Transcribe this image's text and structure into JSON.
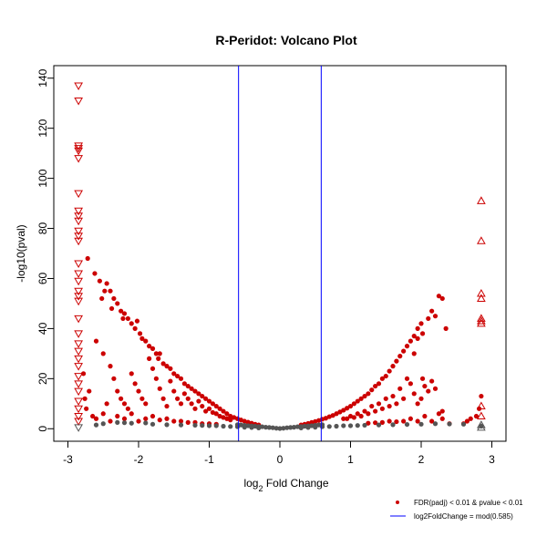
{
  "chart_data": {
    "type": "scatter",
    "title": "R-Peridot: Volcano Plot",
    "xlabel_prefix": "log",
    "xlabel_sub": "2",
    "xlabel_suffix": " Fold Change",
    "ylabel": "-log10(pval)",
    "xlim": [
      -3,
      3
    ],
    "ylim": [
      -5,
      145
    ],
    "x_ticks": [
      -3,
      -2,
      -1,
      0,
      1,
      2,
      3
    ],
    "y_ticks": [
      0,
      20,
      40,
      60,
      80,
      100,
      120,
      140
    ],
    "vlines": [
      -0.585,
      0.585
    ],
    "colors": {
      "significant": "#cc0000",
      "nonsignificant": "#555555",
      "threshold_line": "#0000ff"
    },
    "legend": {
      "position": "bottom-right",
      "items": [
        {
          "label": "FDR(padj) < 0.01 & pvalue < 0.01",
          "marker": "point",
          "color": "#cc0000"
        },
        {
          "label": "log2FoldChange = mod(0.585)",
          "marker": "line",
          "color": "#0000ff"
        }
      ]
    },
    "series": [
      {
        "name": "FDR(padj) < 0.01 & pvalue < 0.01",
        "color": "#cc0000",
        "marker": "circle",
        "points": [
          [
            -2.72,
            68
          ],
          [
            -2.62,
            62
          ],
          [
            -2.55,
            59
          ],
          [
            -2.52,
            52
          ],
          [
            -2.48,
            55
          ],
          [
            -2.45,
            58
          ],
          [
            -2.4,
            55
          ],
          [
            -2.38,
            48
          ],
          [
            -2.35,
            52
          ],
          [
            -2.3,
            50
          ],
          [
            -2.25,
            47
          ],
          [
            -2.22,
            44
          ],
          [
            -2.2,
            46
          ],
          [
            -2.15,
            44
          ],
          [
            -2.1,
            42
          ],
          [
            -2.05,
            40
          ],
          [
            -2.02,
            43
          ],
          [
            -1.98,
            38
          ],
          [
            -1.95,
            36
          ],
          [
            -1.9,
            35
          ],
          [
            -1.85,
            33
          ],
          [
            -1.8,
            32
          ],
          [
            -1.75,
            30
          ],
          [
            -1.72,
            28
          ],
          [
            -1.7,
            30
          ],
          [
            -1.65,
            26
          ],
          [
            -1.6,
            25
          ],
          [
            -1.55,
            24
          ],
          [
            -1.5,
            22
          ],
          [
            -1.45,
            21
          ],
          [
            -1.4,
            20
          ],
          [
            -1.35,
            18
          ],
          [
            -1.3,
            17
          ],
          [
            -1.25,
            16
          ],
          [
            -1.2,
            15
          ],
          [
            -1.15,
            14
          ],
          [
            -1.1,
            13
          ],
          [
            -1.05,
            12
          ],
          [
            -1.0,
            11
          ],
          [
            -0.95,
            10
          ],
          [
            -0.9,
            9
          ],
          [
            -0.85,
            8
          ],
          [
            -0.8,
            7
          ],
          [
            -0.75,
            6
          ],
          [
            -0.7,
            5
          ],
          [
            -0.65,
            4.5
          ],
          [
            -0.6,
            4
          ],
          [
            -0.55,
            3.5
          ],
          [
            -0.5,
            3
          ],
          [
            -0.45,
            2.6
          ],
          [
            -0.4,
            2.2
          ],
          [
            -0.35,
            1.8
          ],
          [
            -0.3,
            1.5
          ],
          [
            -2.6,
            35
          ],
          [
            -2.5,
            30
          ],
          [
            -2.4,
            25
          ],
          [
            -2.35,
            20
          ],
          [
            -2.3,
            15
          ],
          [
            -2.25,
            12
          ],
          [
            -2.2,
            10
          ],
          [
            -2.15,
            8
          ],
          [
            -2.1,
            22
          ],
          [
            -2.05,
            18
          ],
          [
            -2.0,
            15
          ],
          [
            -1.95,
            12
          ],
          [
            -1.9,
            10
          ],
          [
            -1.85,
            28
          ],
          [
            -1.8,
            24
          ],
          [
            -1.75,
            20
          ],
          [
            -1.7,
            16
          ],
          [
            -1.65,
            12
          ],
          [
            -1.6,
            9
          ],
          [
            -1.55,
            19
          ],
          [
            -1.5,
            15
          ],
          [
            -1.45,
            12
          ],
          [
            -1.4,
            10
          ],
          [
            -1.35,
            14
          ],
          [
            -1.3,
            12
          ],
          [
            -1.25,
            10
          ],
          [
            -1.2,
            8
          ],
          [
            -1.15,
            11
          ],
          [
            -1.1,
            9
          ],
          [
            -1.05,
            7
          ],
          [
            -1.0,
            8
          ],
          [
            -0.95,
            6.5
          ],
          [
            -0.9,
            6
          ],
          [
            -0.85,
            5
          ],
          [
            -0.8,
            4.5
          ],
          [
            -0.75,
            4
          ],
          [
            -0.7,
            3.5
          ],
          [
            -2.78,
            22
          ],
          [
            -2.76,
            12
          ],
          [
            -2.74,
            8
          ],
          [
            -2.7,
            15
          ],
          [
            -2.65,
            5
          ],
          [
            -2.6,
            4
          ],
          [
            -2.5,
            6
          ],
          [
            -2.45,
            10
          ],
          [
            -2.4,
            3
          ],
          [
            -2.3,
            5
          ],
          [
            -2.2,
            4
          ],
          [
            -2.1,
            6
          ],
          [
            -2.0,
            3
          ],
          [
            -1.9,
            4
          ],
          [
            -1.8,
            5
          ],
          [
            -1.7,
            3.5
          ],
          [
            -1.6,
            4
          ],
          [
            -1.5,
            3
          ],
          [
            -1.4,
            3
          ],
          [
            -1.3,
            2.5
          ],
          [
            -1.2,
            2.5
          ],
          [
            -1.1,
            2
          ],
          [
            -1.0,
            2
          ],
          [
            -0.9,
            1.8
          ],
          [
            0.3,
            1.5
          ],
          [
            0.35,
            1.8
          ],
          [
            0.4,
            2.1
          ],
          [
            0.45,
            2.5
          ],
          [
            0.5,
            2.9
          ],
          [
            0.55,
            3.3
          ],
          [
            0.6,
            3.8
          ],
          [
            0.65,
            4.2
          ],
          [
            0.7,
            4.8
          ],
          [
            0.75,
            5.3
          ],
          [
            0.8,
            6
          ],
          [
            0.85,
            6.7
          ],
          [
            0.9,
            7.4
          ],
          [
            0.95,
            8.2
          ],
          [
            1.0,
            9
          ],
          [
            1.05,
            10
          ],
          [
            1.1,
            11
          ],
          [
            1.15,
            12
          ],
          [
            1.2,
            13
          ],
          [
            1.25,
            14
          ],
          [
            1.3,
            15.5
          ],
          [
            1.35,
            17
          ],
          [
            1.4,
            18
          ],
          [
            1.45,
            20
          ],
          [
            1.5,
            21
          ],
          [
            1.55,
            23
          ],
          [
            1.6,
            25
          ],
          [
            1.65,
            27
          ],
          [
            1.7,
            29
          ],
          [
            1.75,
            31
          ],
          [
            1.8,
            33
          ],
          [
            1.85,
            35
          ],
          [
            1.9,
            37
          ],
          [
            1.95,
            40
          ],
          [
            2.0,
            42
          ],
          [
            1.9,
            30
          ],
          [
            1.95,
            36
          ],
          [
            2.02,
            38
          ],
          [
            2.1,
            44
          ],
          [
            2.15,
            47
          ],
          [
            2.2,
            45
          ],
          [
            2.25,
            53
          ],
          [
            2.3,
            52
          ],
          [
            2.35,
            40
          ],
          [
            2.02,
            20
          ],
          [
            2.05,
            17
          ],
          [
            2.1,
            15
          ],
          [
            2.15,
            19
          ],
          [
            2.2,
            16
          ],
          [
            2.0,
            12
          ],
          [
            1.95,
            10
          ],
          [
            1.9,
            14
          ],
          [
            1.85,
            18
          ],
          [
            1.8,
            20
          ],
          [
            1.75,
            12
          ],
          [
            1.7,
            16
          ],
          [
            1.65,
            10
          ],
          [
            1.6,
            13
          ],
          [
            1.55,
            9
          ],
          [
            1.5,
            12
          ],
          [
            1.45,
            8
          ],
          [
            1.4,
            10
          ],
          [
            1.35,
            7
          ],
          [
            1.3,
            9
          ],
          [
            1.25,
            6
          ],
          [
            1.2,
            7
          ],
          [
            1.15,
            5
          ],
          [
            1.1,
            6
          ],
          [
            1.05,
            4.5
          ],
          [
            1.0,
            5
          ],
          [
            0.95,
            4
          ],
          [
            0.9,
            4
          ],
          [
            2.25,
            6
          ],
          [
            2.3,
            4
          ],
          [
            2.15,
            3
          ],
          [
            2.05,
            5
          ],
          [
            1.95,
            3
          ],
          [
            1.85,
            4
          ],
          [
            1.75,
            3
          ],
          [
            1.65,
            2.8
          ],
          [
            1.55,
            3
          ],
          [
            1.45,
            2.5
          ],
          [
            1.35,
            2.4
          ],
          [
            1.25,
            2.2
          ],
          [
            2.65,
            3
          ],
          [
            2.7,
            4
          ],
          [
            2.6,
            2
          ],
          [
            2.85,
            13
          ],
          [
            2.82,
            8
          ],
          [
            2.78,
            5
          ],
          [
            2.3,
            7
          ],
          [
            2.4,
            2
          ]
        ]
      },
      {
        "name": "",
        "color": "#555555",
        "marker": "circle",
        "points": [
          [
            -0.6,
            1.6
          ],
          [
            -0.55,
            1.5
          ],
          [
            -0.5,
            1.4
          ],
          [
            -0.45,
            1.2
          ],
          [
            -0.4,
            1.1
          ],
          [
            -0.35,
            1.0
          ],
          [
            -0.3,
            0.9
          ],
          [
            -0.25,
            0.8
          ],
          [
            -0.2,
            0.6
          ],
          [
            -0.15,
            0.5
          ],
          [
            -0.1,
            0.4
          ],
          [
            -0.05,
            0.2
          ],
          [
            0.0,
            0.1
          ],
          [
            0.05,
            0.2
          ],
          [
            0.1,
            0.4
          ],
          [
            0.15,
            0.5
          ],
          [
            0.2,
            0.6
          ],
          [
            0.25,
            0.8
          ],
          [
            0.3,
            0.9
          ],
          [
            0.35,
            1.0
          ],
          [
            0.4,
            1.1
          ],
          [
            0.45,
            1.2
          ],
          [
            0.5,
            1.4
          ],
          [
            0.55,
            1.5
          ],
          [
            0.6,
            1.6
          ],
          [
            -0.9,
            1.2
          ],
          [
            -0.8,
            1.0
          ],
          [
            -0.7,
            0.9
          ],
          [
            -0.6,
            0.8
          ],
          [
            -0.5,
            0.6
          ],
          [
            -0.4,
            0.5
          ],
          [
            -0.3,
            0.3
          ],
          [
            0.3,
            0.3
          ],
          [
            0.4,
            0.5
          ],
          [
            0.5,
            0.6
          ],
          [
            0.6,
            0.8
          ],
          [
            0.7,
            0.9
          ],
          [
            0.8,
            1.0
          ],
          [
            0.9,
            1.2
          ],
          [
            -1.2,
            1.4
          ],
          [
            -1.1,
            1.3
          ],
          [
            -1.0,
            1.2
          ],
          [
            1.0,
            1.2
          ],
          [
            1.1,
            1.3
          ],
          [
            1.2,
            1.4
          ],
          [
            -2.3,
            2.5
          ],
          [
            -2.2,
            2.4
          ],
          [
            -2.1,
            2.2
          ],
          [
            -1.9,
            2.3
          ],
          [
            -1.8,
            1.8
          ],
          [
            -1.6,
            1.6
          ],
          [
            -1.4,
            1.5
          ],
          [
            1.4,
            1.5
          ],
          [
            1.6,
            1.6
          ],
          [
            1.8,
            1.7
          ],
          [
            2.0,
            1.8
          ],
          [
            2.2,
            2.0
          ],
          [
            2.4,
            1.9
          ],
          [
            -2.6,
            1.5
          ],
          [
            -2.5,
            2.0
          ],
          [
            2.6,
            1.8
          ],
          [
            2.85,
            1.0
          ]
        ]
      },
      {
        "name": "",
        "color": "#cc0000",
        "marker": "triangle-down",
        "points": [
          [
            -2.85,
            137
          ],
          [
            -2.85,
            131
          ],
          [
            -2.85,
            113
          ],
          [
            -2.85,
            112
          ],
          [
            -2.85,
            111
          ],
          [
            -2.85,
            108
          ],
          [
            -2.85,
            94
          ],
          [
            -2.85,
            87
          ],
          [
            -2.85,
            85
          ],
          [
            -2.85,
            83
          ],
          [
            -2.85,
            79
          ],
          [
            -2.85,
            77
          ],
          [
            -2.85,
            75
          ],
          [
            -2.85,
            66
          ],
          [
            -2.85,
            62
          ],
          [
            -2.85,
            59
          ],
          [
            -2.85,
            55
          ],
          [
            -2.85,
            53
          ],
          [
            -2.85,
            51
          ],
          [
            -2.85,
            44
          ],
          [
            -2.85,
            38
          ],
          [
            -2.85,
            34
          ],
          [
            -2.85,
            31
          ],
          [
            -2.85,
            28
          ],
          [
            -2.85,
            25
          ],
          [
            -2.85,
            21
          ],
          [
            -2.85,
            18
          ],
          [
            -2.85,
            15
          ],
          [
            -2.85,
            11
          ],
          [
            -2.85,
            8
          ],
          [
            -2.85,
            5
          ],
          [
            -2.85,
            3
          ]
        ]
      },
      {
        "name": "",
        "color": "#555555",
        "marker": "triangle-down",
        "points": [
          [
            -2.85,
            0.5
          ]
        ]
      },
      {
        "name": "",
        "color": "#cc0000",
        "marker": "triangle-up",
        "points": [
          [
            2.85,
            91
          ],
          [
            2.85,
            75
          ],
          [
            2.85,
            54
          ],
          [
            2.85,
            52
          ],
          [
            2.85,
            44
          ],
          [
            2.85,
            43
          ],
          [
            2.85,
            42
          ],
          [
            2.85,
            9
          ],
          [
            2.85,
            5
          ]
        ]
      },
      {
        "name": "",
        "color": "#555555",
        "marker": "triangle-up",
        "points": [
          [
            2.85,
            1.5
          ],
          [
            2.85,
            0.5
          ]
        ]
      }
    ]
  }
}
